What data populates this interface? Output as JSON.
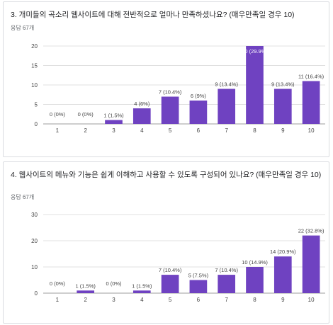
{
  "colors": {
    "bar": "#6f42c1",
    "grid": "#e0e0e0",
    "axis": "#9e9e9e"
  },
  "questions": [
    {
      "title": "3. 개미들의 곡소리 웹사이트에 대해 전반적으로 얼마나 만족하셨나요? (매우만족일 경우 10)",
      "count": "응답 67개"
    },
    {
      "title": "4. 웹사이트의 메뉴와 기능은 쉽게 이해하고 사용할 수 있도록 구성되어 있나요? (매우만족일 경우 10)",
      "count": "응답 67개"
    }
  ],
  "chart_data": [
    {
      "type": "bar",
      "categories": [
        "1",
        "2",
        "3",
        "4",
        "5",
        "6",
        "7",
        "8",
        "9",
        "10"
      ],
      "values": [
        0,
        0,
        1,
        4,
        7,
        6,
        9,
        20,
        9,
        11
      ],
      "labels": [
        "0 (0%)",
        "0 (0%)",
        "1 (1.5%)",
        "4 (6%)",
        "7 (10.4%)",
        "6 (9%)",
        "9 (13.4%)",
        "20 (29.9%)",
        "9 (13.4%)",
        "11 (16.4%)"
      ],
      "yticks": [
        0,
        5,
        10,
        15,
        20
      ],
      "ylim": [
        0,
        20
      ],
      "grid": true
    },
    {
      "type": "bar",
      "categories": [
        "1",
        "2",
        "3",
        "4",
        "5",
        "6",
        "7",
        "8",
        "9",
        "10"
      ],
      "values": [
        0,
        1,
        0,
        1,
        7,
        5,
        7,
        10,
        14,
        22
      ],
      "labels": [
        "0 (0%)",
        "1 (1.5%)",
        "0 (0%)",
        "1 (1.5%)",
        "7 (10.4%)",
        "5 (7.5%)",
        "7 (10.4%)",
        "10 (14.9%)",
        "14 (20.9%)",
        "22 (32.8%)"
      ],
      "yticks": [
        0,
        10,
        20,
        30
      ],
      "ylim": [
        0,
        30
      ],
      "grid": true
    }
  ]
}
